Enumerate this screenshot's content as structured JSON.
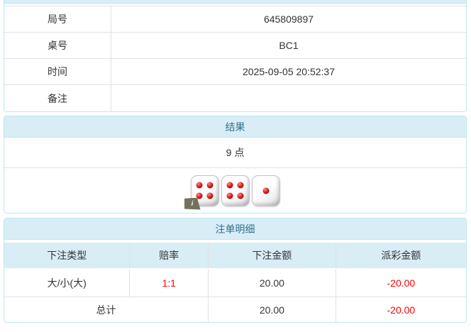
{
  "info_table": {
    "rows": [
      {
        "label": "局号",
        "value": "645809897"
      },
      {
        "label": "桌号",
        "value": "BC1"
      },
      {
        "label": "时间",
        "value": "2025-09-05 20:52:37"
      },
      {
        "label": "备注",
        "value": ""
      }
    ]
  },
  "result_panel": {
    "title": "结果",
    "points": "9 点",
    "dice": [
      4,
      4,
      1
    ],
    "info_badge": "i"
  },
  "bets_panel": {
    "title": "注单明细",
    "columns": [
      "下注类型",
      "赔率",
      "下注金额",
      "派彩金额"
    ],
    "rows": [
      {
        "bet_type": "大/小(大)",
        "odds": "1:1",
        "bet_amount": "20.00",
        "payout": "-20.00"
      }
    ],
    "total": {
      "label": "总计",
      "bet_amount": "20.00",
      "payout": "-20.00"
    }
  },
  "colors": {
    "panel_border": "#bce8f1",
    "heading_bg": "#d9edf7",
    "heading_text": "#31708f",
    "divider": "#e1e1e1",
    "body_text": "#333333",
    "negative_text": "#ff0000"
  }
}
